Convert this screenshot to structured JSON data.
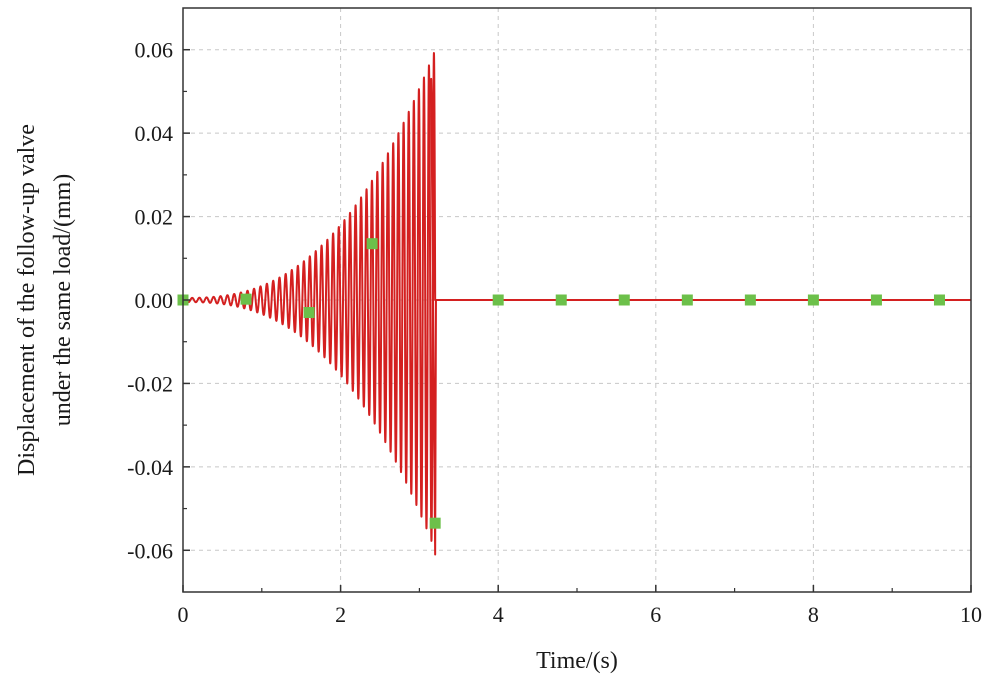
{
  "chart_data": {
    "type": "line",
    "title": "",
    "xlabel": "Time/(s)",
    "ylabel_lines": [
      "Displacement of the follow-up valve",
      "under the same load/(mm)"
    ],
    "xlim": [
      0,
      10
    ],
    "ylim": [
      -0.07,
      0.07
    ],
    "xticks": [
      0,
      2,
      4,
      6,
      8,
      10
    ],
    "xtick_labels": [
      "0",
      "2",
      "4",
      "6",
      "8",
      "10"
    ],
    "yticks": [
      -0.06,
      -0.04,
      -0.02,
      0.0,
      0.02,
      0.04,
      0.06
    ],
    "ytick_labels": [
      "-0.06",
      "-0.04",
      "-0.02",
      "0.00",
      "0.02",
      "0.04",
      "0.06"
    ],
    "grid": true,
    "legend": "none",
    "colors": {
      "line": "#d42020",
      "marker": "#6cc04a",
      "grid": "#c8c8c8",
      "axis": "#333333"
    },
    "series": [
      {
        "style": "line",
        "description_values": "growing oscillation from t=0 to t=3.2 s reaching peaks of about +0.053 and -0.061, then constant at 0",
        "envelope": {
          "t_end": 3.2,
          "amp_start": 0.0005,
          "amp_end": 0.06,
          "cycles": 34
        },
        "x": [
          0.0,
          0.4,
          0.8,
          1.2,
          1.6,
          2.0,
          2.4,
          2.8,
          3.0,
          3.1,
          3.15,
          3.2,
          3.21,
          4.0,
          6.0,
          8.0,
          10.0
        ],
        "y": [
          0.0,
          0.0006,
          0.0012,
          0.0028,
          0.0055,
          0.0105,
          0.018,
          0.031,
          0.042,
          0.05,
          0.053,
          -0.061,
          0.0,
          0.0,
          0.0,
          0.0,
          0.0
        ]
      },
      {
        "style": "markers",
        "x": [
          0.0,
          0.8,
          1.6,
          2.4,
          3.2,
          4.0,
          4.8,
          5.6,
          6.4,
          7.2,
          8.0,
          8.8,
          9.6
        ],
        "y": [
          0.0,
          0.0002,
          -0.003,
          0.0135,
          -0.0535,
          0.0,
          0.0,
          0.0,
          0.0,
          0.0,
          0.0,
          0.0,
          0.0
        ]
      }
    ]
  }
}
